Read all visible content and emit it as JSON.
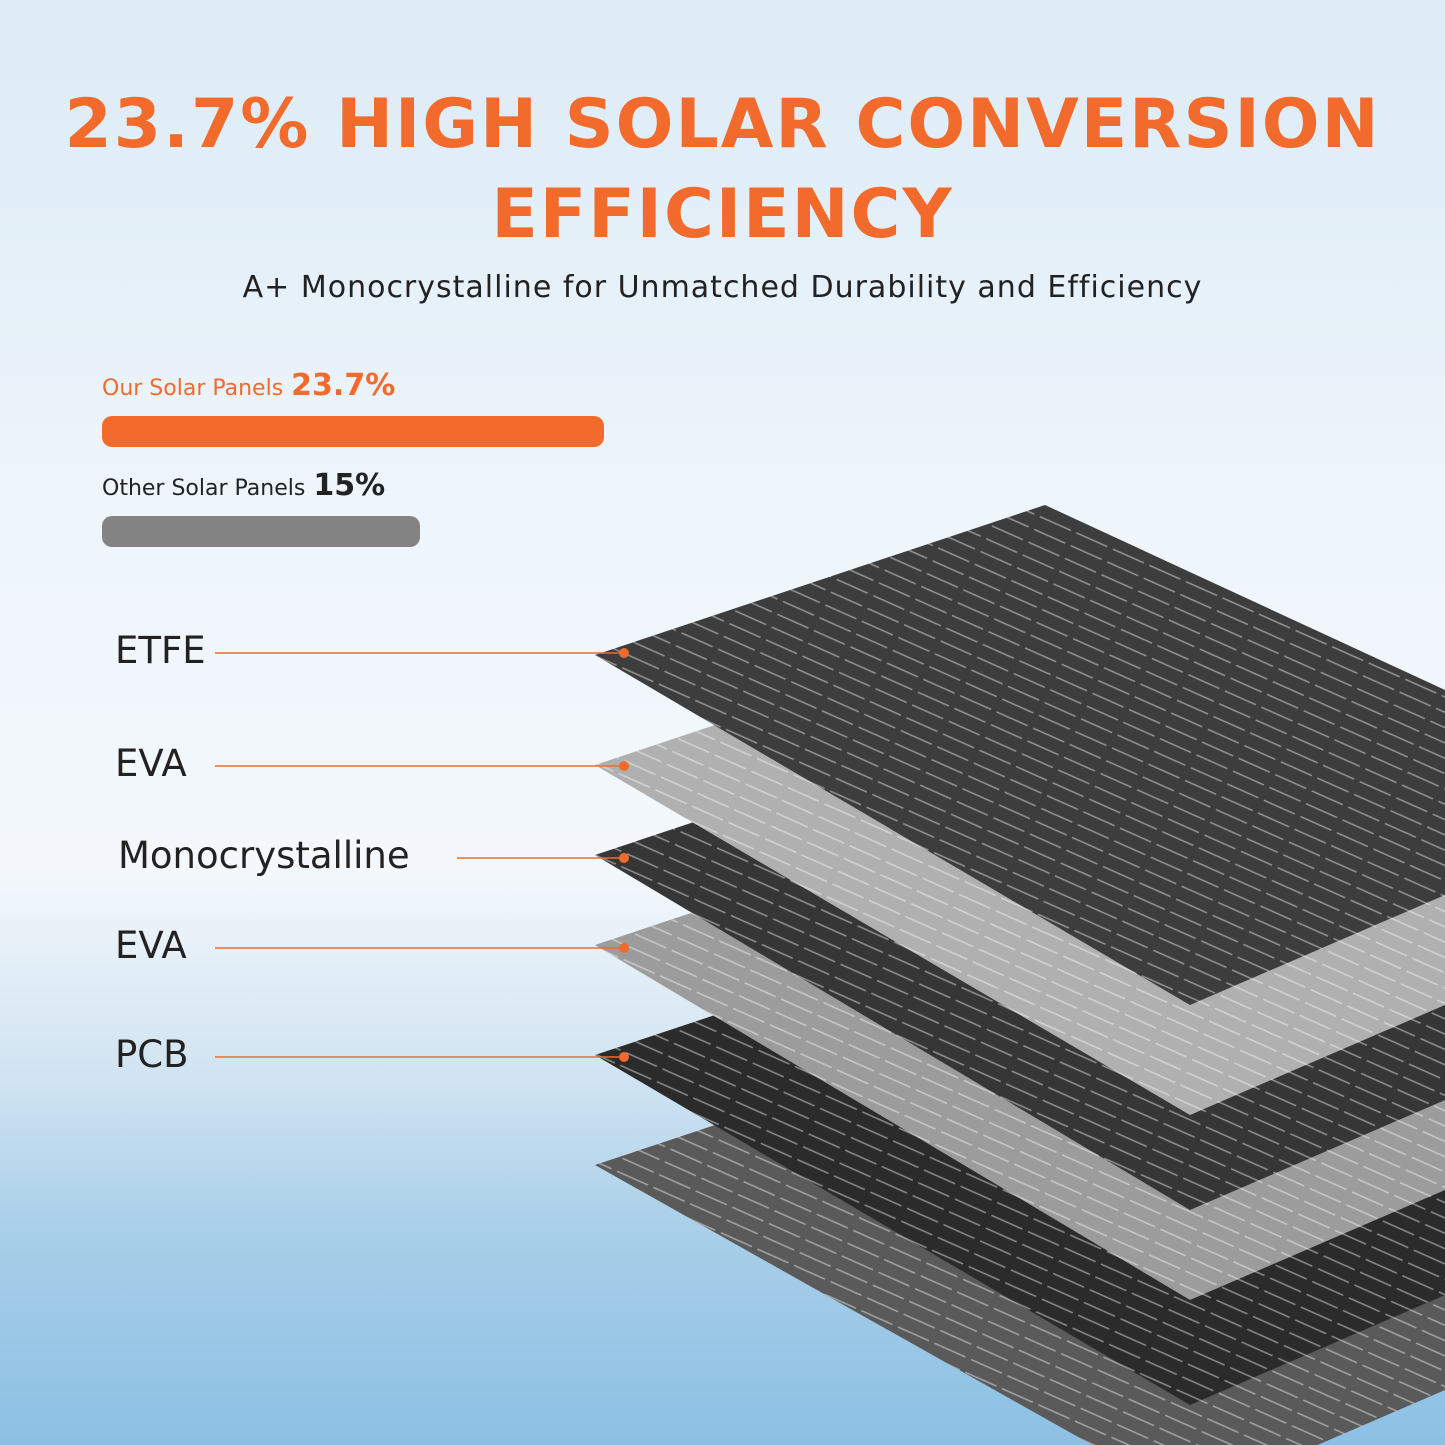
{
  "header": {
    "title_lines": [
      "23.7% HIGH SOLAR CONVERSION",
      "EFFICIENCY"
    ],
    "subtitle": "A+ Monocrystalline for Unmatched Durability and Efficiency"
  },
  "comparison": [
    {
      "label": "Our Solar Panels",
      "value": 23.7,
      "value_label": "23.7%",
      "color": "#f26a2c"
    },
    {
      "label": "Other Solar Panels",
      "value": 15,
      "value_label": "15%",
      "color": "#838383"
    }
  ],
  "layers": [
    "ETFE",
    "EVA",
    "Monocrystalline",
    "EVA",
    "PCB"
  ]
}
